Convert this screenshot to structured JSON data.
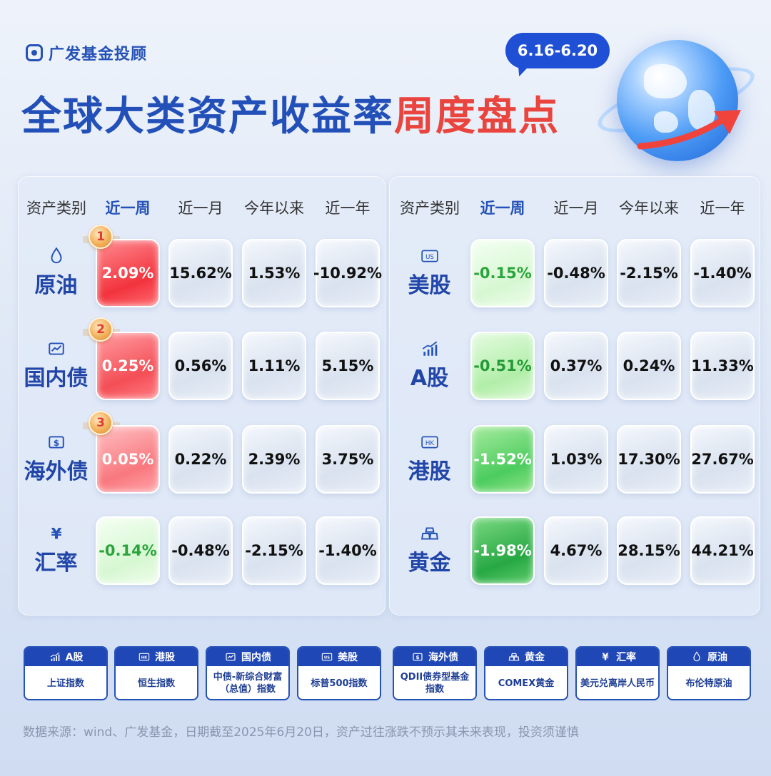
{
  "brand": {
    "name": "广发基金投顾",
    "icon": "brand-logo-icon",
    "color": "#2552b8"
  },
  "title": {
    "part1": "全球大类资产收益率",
    "part2": "周度盘点"
  },
  "date_range": "6.16-6.20",
  "colors": {
    "accent_blue": "#2552b8",
    "accent_red": "#e9443e",
    "up": "#f2333d",
    "down": "#27a843"
  },
  "left_panel": {
    "headers": [
      "资产类别",
      "近一周",
      "近一月",
      "今年以来",
      "近一年"
    ],
    "rows": [
      {
        "name": "原油",
        "icon": "oil-drop-icon",
        "rank": "1",
        "values": [
          "2.09%",
          "15.62%",
          "1.53%",
          "-10.92%"
        ]
      },
      {
        "name": "国内债",
        "icon": "bond-chart-icon",
        "rank": "2",
        "values": [
          "0.25%",
          "0.56%",
          "1.11%",
          "5.15%"
        ]
      },
      {
        "name": "海外债",
        "icon": "dollar-bill-icon",
        "rank": "3",
        "values": [
          "0.05%",
          "0.22%",
          "2.39%",
          "3.75%"
        ]
      },
      {
        "name": "汇率",
        "icon": "yen-icon",
        "icon_text": "¥",
        "values": [
          "-0.14%",
          "-0.48%",
          "-2.15%",
          "-1.40%"
        ]
      }
    ]
  },
  "right_panel": {
    "headers": [
      "资产类别",
      "近一周",
      "近一月",
      "今年以来",
      "近一年"
    ],
    "rows": [
      {
        "name": "美股",
        "icon": "us-tag-icon",
        "icon_text": "US",
        "values": [
          "-0.15%",
          "-0.48%",
          "-2.15%",
          "-1.40%"
        ]
      },
      {
        "name": "A股",
        "icon": "rising-bars-icon",
        "values": [
          "-0.51%",
          "0.37%",
          "0.24%",
          "11.33%"
        ]
      },
      {
        "name": "港股",
        "icon": "hk-tag-icon",
        "icon_text": "HK",
        "values": [
          "-1.52%",
          "1.03%",
          "17.30%",
          "27.67%"
        ]
      },
      {
        "name": "黄金",
        "icon": "gold-bars-icon",
        "values": [
          "-1.98%",
          "4.67%",
          "28.15%",
          "44.21%"
        ]
      }
    ]
  },
  "legend": [
    {
      "name": "A股",
      "icon": "rising-bars-icon",
      "desc": "上证指数"
    },
    {
      "name": "港股",
      "icon": "hk-tag-icon",
      "icon_text": "HK",
      "desc": "恒生指数"
    },
    {
      "name": "国内债",
      "icon": "bond-chart-icon",
      "desc": "中债-新综合财富（总值）指数"
    },
    {
      "name": "美股",
      "icon": "us-tag-icon",
      "icon_text": "US",
      "desc": "标普500指数"
    },
    {
      "name": "海外债",
      "icon": "dollar-bill-icon",
      "desc": "QDII债券型基金指数"
    },
    {
      "name": "黄金",
      "icon": "gold-bars-icon",
      "desc": "COMEX黄金"
    },
    {
      "name": "汇率",
      "icon": "yen-icon",
      "icon_text": "¥",
      "desc": "美元兑离岸人民币"
    },
    {
      "name": "原油",
      "icon": "oil-drop-icon",
      "desc": "布伦特原油"
    }
  ],
  "footer": "数据来源：wind、广发基金，日期截至2025年6月20日，资产过往涨跌不预示其未来表现，投资须谨慎"
}
